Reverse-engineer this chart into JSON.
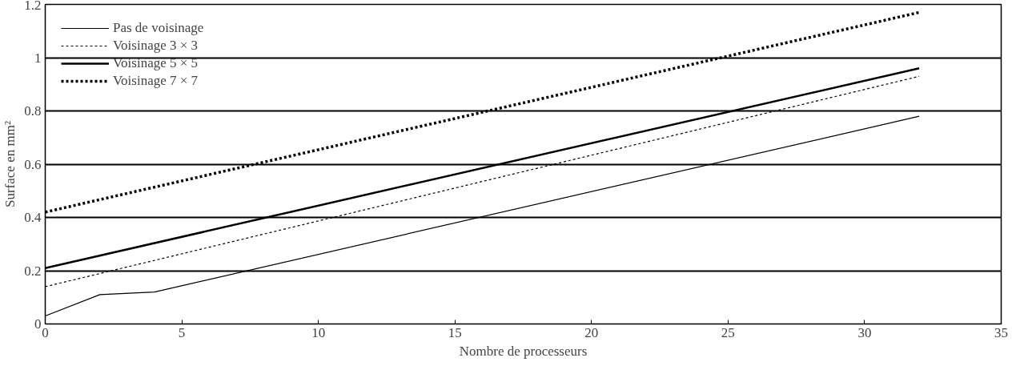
{
  "chart_data": {
    "type": "line",
    "xlabel": "Nombre de processeurs",
    "ylabel": "Surface en mm²",
    "xlim": [
      0,
      35
    ],
    "xticks": [
      0,
      5,
      10,
      15,
      20,
      25,
      30,
      35
    ],
    "ylim": [
      0,
      1.2
    ],
    "yticks": [
      0,
      0.2,
      0.4,
      0.6,
      0.8,
      1,
      1.2
    ],
    "grid": "y",
    "legend": "top left",
    "marker": "none",
    "series": [
      {
        "name": "Pas de voisinage",
        "color": "#000000",
        "line_style": "solid",
        "x": [
          0,
          2,
          4,
          32
        ],
        "values": [
          0.03,
          0.11,
          0.12,
          0.78
        ]
      },
      {
        "name": "Voisinage 3 × 3",
        "color": "#000000",
        "line_style": "dotted",
        "x": [
          0,
          32
        ],
        "values": [
          0.14,
          0.93
        ]
      },
      {
        "name": "Voisinage 5 × 5",
        "color": "#000000",
        "line_style": "solid",
        "x": [
          0,
          32
        ],
        "values": [
          0.21,
          0.96
        ]
      },
      {
        "name": "Voisinage 7 × 7",
        "color": "#000000",
        "line_style": "dotted",
        "x": [
          0,
          32
        ],
        "values": [
          0.42,
          1.17
        ]
      }
    ]
  }
}
